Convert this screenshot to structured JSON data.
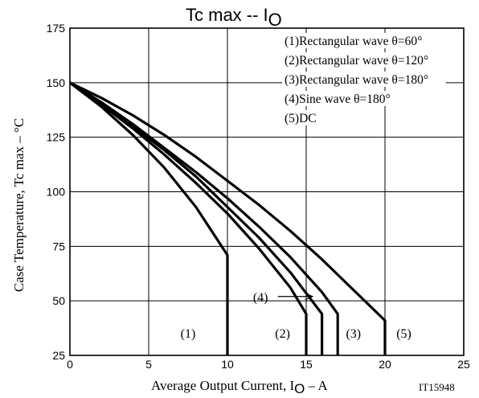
{
  "chart_data": {
    "type": "line",
    "title": {
      "main": "Tc max  --  I",
      "sub": "O"
    },
    "xlabel": {
      "main": "Average Output Current, I",
      "sub": "O",
      "suffix": "  –  A"
    },
    "ylabel": "Case Temperature, Tc max  –  °C",
    "code": "IT15948",
    "xlim": [
      0,
      25
    ],
    "ylim": [
      25,
      175
    ],
    "xticks": [
      "0",
      "5",
      "10",
      "15",
      "20",
      "25"
    ],
    "yticks": [
      "25",
      "50",
      "75",
      "100",
      "125",
      "150",
      "175"
    ],
    "grid": true,
    "legend_position": "top-right",
    "legend": [
      "(1)Rectangular wave θ=60°",
      "(2)Rectangular wave θ=120°",
      "(3)Rectangular wave θ=180°",
      "(4)Sine wave θ=180°",
      "(5)DC"
    ],
    "series": [
      {
        "label": "(1)",
        "points": [
          [
            0,
            150
          ],
          [
            2,
            139
          ],
          [
            4,
            126
          ],
          [
            6,
            111
          ],
          [
            8,
            93
          ],
          [
            10,
            71
          ],
          [
            10,
            25
          ]
        ]
      },
      {
        "label": "(2)",
        "points": [
          [
            0,
            150
          ],
          [
            2,
            140
          ],
          [
            4,
            129
          ],
          [
            6,
            117
          ],
          [
            8,
            104
          ],
          [
            10,
            90
          ],
          [
            12,
            74
          ],
          [
            14,
            56
          ],
          [
            15,
            44
          ],
          [
            15,
            25
          ]
        ]
      },
      {
        "label": "(4)",
        "points": [
          [
            0,
            150
          ],
          [
            2,
            141
          ],
          [
            4,
            130
          ],
          [
            6,
            119
          ],
          [
            8,
            107
          ],
          [
            10,
            93
          ],
          [
            12,
            79
          ],
          [
            14,
            63
          ],
          [
            16,
            44
          ],
          [
            16,
            25
          ]
        ]
      },
      {
        "label": "(3)",
        "points": [
          [
            0,
            150
          ],
          [
            2,
            141
          ],
          [
            4,
            131
          ],
          [
            6,
            120
          ],
          [
            8,
            109
          ],
          [
            10,
            97
          ],
          [
            12,
            84
          ],
          [
            14,
            70
          ],
          [
            16,
            54
          ],
          [
            17,
            44
          ],
          [
            17,
            25
          ]
        ]
      },
      {
        "label": "(5)",
        "points": [
          [
            0,
            150
          ],
          [
            2,
            143
          ],
          [
            4,
            135
          ],
          [
            6,
            126
          ],
          [
            8,
            116
          ],
          [
            10,
            105
          ],
          [
            12,
            94
          ],
          [
            14,
            82
          ],
          [
            16,
            69
          ],
          [
            18,
            55
          ],
          [
            20,
            41
          ],
          [
            20,
            25
          ]
        ]
      }
    ],
    "curve_labels": [
      {
        "text": "(1)",
        "x": 7.5,
        "y": 35
      },
      {
        "text": "(2)",
        "x": 13.5,
        "y": 35
      },
      {
        "text": "(3)",
        "x": 18.0,
        "y": 35
      },
      {
        "text": "(5)",
        "x": 21.2,
        "y": 35
      },
      {
        "text": "(4)",
        "x": 12.1,
        "y": 51.5
      }
    ],
    "arrow": {
      "from": [
        13.2,
        52
      ],
      "to": [
        15.4,
        52
      ]
    }
  }
}
